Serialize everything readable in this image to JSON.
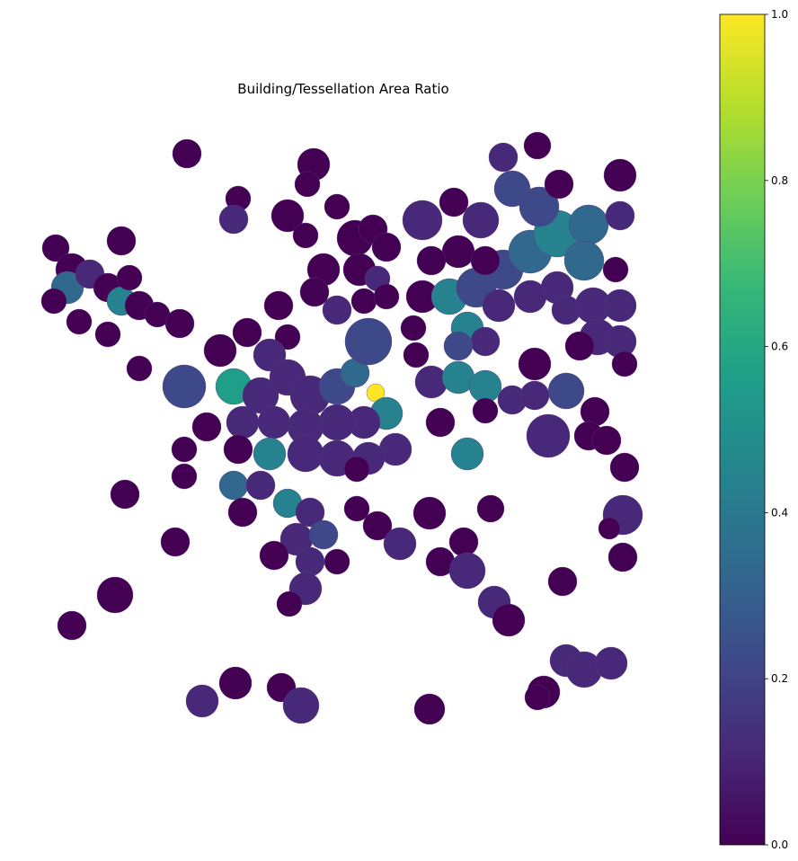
{
  "map": {
    "title": "Building/Tessellation Area Ratio"
  },
  "colorbar": {
    "colormap": "viridis",
    "range": [
      0.0,
      1.0
    ],
    "ticks": [
      {
        "value": 0.0,
        "label": "0.0"
      },
      {
        "value": 0.2,
        "label": "0.2"
      },
      {
        "value": 0.4,
        "label": "0.4"
      },
      {
        "value": 0.6,
        "label": "0.6"
      },
      {
        "value": 0.8,
        "label": "0.8"
      },
      {
        "value": 1.0,
        "label": "1.0"
      }
    ]
  },
  "colors": {
    "viridis_0": "#440154",
    "viridis_1": "#482878",
    "viridis_2": "#3e4989",
    "viridis_3": "#31688e",
    "viridis_4": "#26828e",
    "viridis_5": "#1f9e89",
    "viridis_6": "#35b779",
    "viridis_7": "#6ece58",
    "viridis_8": "#b5de2b",
    "viridis_9": "#fde725"
  }
}
